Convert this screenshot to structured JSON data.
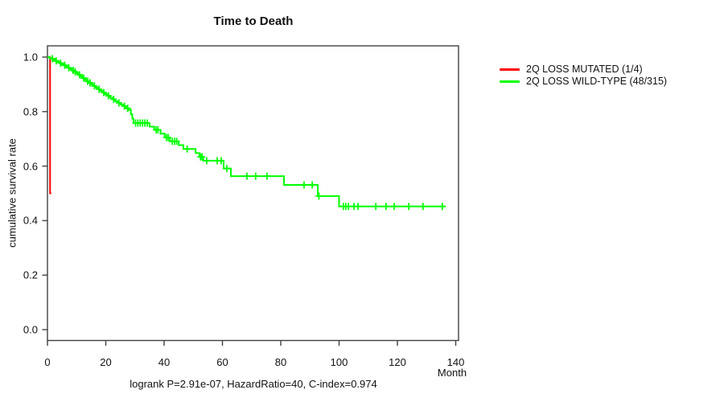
{
  "title": "Time to Death",
  "caption": "logrank P=2.91e-07, HazardRatio=40, C-index=0.974",
  "axes": {
    "xlabel": "Month",
    "ylabel": "cumulative survival rate",
    "xtick_labels": [
      "0",
      "20",
      "40",
      "60",
      "80",
      "100",
      "120",
      "140"
    ],
    "ytick_labels": [
      "0.0",
      "0.2",
      "0.4",
      "0.6",
      "0.8",
      "1.0"
    ]
  },
  "legend": [
    {
      "label": "2Q LOSS MUTATED (1/4)",
      "color": "#ff0000"
    },
    {
      "label": "2Q LOSS WILD-TYPE (48/315)",
      "color": "#00ff00"
    }
  ],
  "chart_data": {
    "type": "line",
    "subtype": "kaplan-meier-step",
    "title": "Time to Death",
    "xlabel": "Month",
    "ylabel": "cumulative survival rate",
    "xlim": [
      0,
      140
    ],
    "ylim": [
      0.0,
      1.0
    ],
    "xticks": [
      0,
      20,
      40,
      60,
      80,
      100,
      120,
      140
    ],
    "yticks": [
      0.0,
      0.2,
      0.4,
      0.6,
      0.8,
      1.0
    ],
    "grid": false,
    "legend_position": "right-outside",
    "annotation": "logrank P=2.91e-07, HazardRatio=40, C-index=0.974",
    "series": [
      {
        "name": "2Q LOSS MUTATED (1/4)",
        "color": "#ff0000",
        "steps": [
          [
            0,
            1.0
          ],
          [
            0.9,
            1.0
          ],
          [
            0.9,
            0.5
          ],
          [
            1.3,
            0.5
          ]
        ],
        "censors": []
      },
      {
        "name": "2Q LOSS WILD-TYPE (48/315)",
        "color": "#00ff00",
        "steps": [
          [
            0,
            1.0
          ],
          [
            0.7,
            0.997
          ],
          [
            1.4,
            0.994
          ],
          [
            2.1,
            0.99
          ],
          [
            2.8,
            0.986
          ],
          [
            3.5,
            0.982
          ],
          [
            4.2,
            0.978
          ],
          [
            5.0,
            0.974
          ],
          [
            5.7,
            0.97
          ],
          [
            6.4,
            0.966
          ],
          [
            7.1,
            0.961
          ],
          [
            7.8,
            0.956
          ],
          [
            8.5,
            0.951
          ],
          [
            9.2,
            0.946
          ],
          [
            10.0,
            0.941
          ],
          [
            10.7,
            0.935
          ],
          [
            11.4,
            0.929
          ],
          [
            12.1,
            0.923
          ],
          [
            12.8,
            0.917
          ],
          [
            13.5,
            0.911
          ],
          [
            14.2,
            0.906
          ],
          [
            15.0,
            0.9
          ],
          [
            15.8,
            0.894
          ],
          [
            16.6,
            0.888
          ],
          [
            17.4,
            0.882
          ],
          [
            18.2,
            0.876
          ],
          [
            19.0,
            0.87
          ],
          [
            19.8,
            0.864
          ],
          [
            20.6,
            0.858
          ],
          [
            21.5,
            0.851
          ],
          [
            22.4,
            0.845
          ],
          [
            23.3,
            0.838
          ],
          [
            24.2,
            0.832
          ],
          [
            25.1,
            0.826
          ],
          [
            26.0,
            0.82
          ],
          [
            27.0,
            0.812
          ],
          [
            28.0,
            0.806
          ],
          [
            28.6,
            0.79
          ],
          [
            29.1,
            0.774
          ],
          [
            29.5,
            0.758
          ],
          [
            35.0,
            0.745
          ],
          [
            36.6,
            0.733
          ],
          [
            38.8,
            0.719
          ],
          [
            40.2,
            0.705
          ],
          [
            42.0,
            0.691
          ],
          [
            45.0,
            0.677
          ],
          [
            46.6,
            0.663
          ],
          [
            50.8,
            0.648
          ],
          [
            52.1,
            0.634
          ],
          [
            53.4,
            0.62
          ],
          [
            60.4,
            0.591
          ],
          [
            62.9,
            0.563
          ],
          [
            81.1,
            0.531
          ],
          [
            92.7,
            0.49
          ],
          [
            100.0,
            0.452
          ],
          [
            136.6,
            0.452
          ]
        ],
        "censors": [
          [
            1.7,
            0.994
          ],
          [
            3.0,
            0.986
          ],
          [
            4.5,
            0.978
          ],
          [
            5.9,
            0.97
          ],
          [
            7.3,
            0.961
          ],
          [
            8.8,
            0.951
          ],
          [
            9.5,
            0.946
          ],
          [
            11.0,
            0.935
          ],
          [
            12.4,
            0.923
          ],
          [
            13.8,
            0.911
          ],
          [
            14.6,
            0.906
          ],
          [
            16.1,
            0.894
          ],
          [
            17.7,
            0.882
          ],
          [
            19.3,
            0.87
          ],
          [
            20.9,
            0.858
          ],
          [
            22.7,
            0.845
          ],
          [
            24.5,
            0.832
          ],
          [
            26.4,
            0.82
          ],
          [
            27.5,
            0.812
          ],
          [
            30.2,
            0.758
          ],
          [
            31.0,
            0.758
          ],
          [
            31.8,
            0.758
          ],
          [
            32.6,
            0.758
          ],
          [
            33.4,
            0.758
          ],
          [
            34.2,
            0.758
          ],
          [
            37.3,
            0.733
          ],
          [
            37.9,
            0.733
          ],
          [
            40.8,
            0.705
          ],
          [
            41.4,
            0.705
          ],
          [
            42.8,
            0.691
          ],
          [
            43.6,
            0.691
          ],
          [
            44.3,
            0.691
          ],
          [
            47.9,
            0.663
          ],
          [
            52.5,
            0.634
          ],
          [
            53.0,
            0.634
          ],
          [
            54.6,
            0.62
          ],
          [
            58.2,
            0.62
          ],
          [
            59.6,
            0.62
          ],
          [
            61.5,
            0.591
          ],
          [
            68.4,
            0.563
          ],
          [
            71.4,
            0.563
          ],
          [
            75.3,
            0.563
          ],
          [
            88.0,
            0.531
          ],
          [
            90.8,
            0.531
          ],
          [
            93.1,
            0.49
          ],
          [
            101.5,
            0.452
          ],
          [
            102.3,
            0.452
          ],
          [
            103.2,
            0.452
          ],
          [
            105.1,
            0.452
          ],
          [
            106.5,
            0.452
          ],
          [
            112.6,
            0.452
          ],
          [
            116.1,
            0.452
          ],
          [
            118.9,
            0.452
          ],
          [
            123.9,
            0.452
          ],
          [
            128.8,
            0.452
          ],
          [
            135.4,
            0.452
          ]
        ]
      }
    ]
  }
}
